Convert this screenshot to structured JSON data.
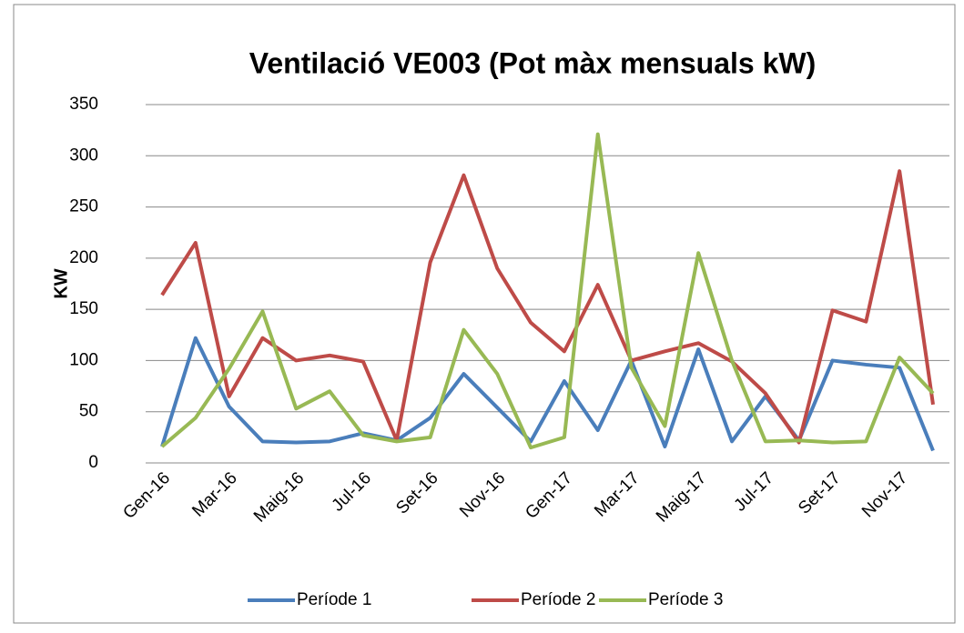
{
  "chart_data": {
    "type": "line",
    "title": "Ventilació VE003 (Pot màx mensuals kW)",
    "y_label": "KW",
    "categories": [
      "Gen-16",
      null,
      "Mar-16",
      null,
      "Maig-16",
      null,
      "Jul-16",
      null,
      "Set-16",
      null,
      "Nov-16",
      null,
      "Gen-17",
      null,
      "Mar-17",
      null,
      "Maig-17",
      null,
      "Jul-17",
      null,
      "Set-17",
      null,
      "Nov-17",
      null
    ],
    "series": [
      {
        "name": "Període 1",
        "color": "#4a7ebb",
        "values": [
          16,
          122,
          55,
          21,
          20,
          21,
          29,
          22,
          44,
          87,
          54,
          21,
          80,
          32,
          100,
          16,
          111,
          21,
          65,
          22,
          100,
          96,
          93,
          12
        ]
      },
      {
        "name": "Període 2",
        "color": "#be4b48",
        "values": [
          164,
          215,
          65,
          122,
          100,
          105,
          99,
          22,
          196,
          281,
          190,
          137,
          109,
          174,
          100,
          109,
          117,
          99,
          68,
          20,
          149,
          138,
          285,
          57
        ]
      },
      {
        "name": "Període 3",
        "color": "#98b954",
        "values": [
          16,
          44,
          92,
          148,
          53,
          70,
          27,
          21,
          25,
          130,
          87,
          15,
          25,
          321,
          93,
          36,
          205,
          100,
          21,
          22,
          20,
          21,
          103,
          68
        ]
      }
    ],
    "ylim": [
      0,
      350
    ],
    "yticks": [
      0,
      50,
      100,
      150,
      200,
      250,
      300,
      350
    ],
    "grid": true,
    "legend": "bottom"
  }
}
